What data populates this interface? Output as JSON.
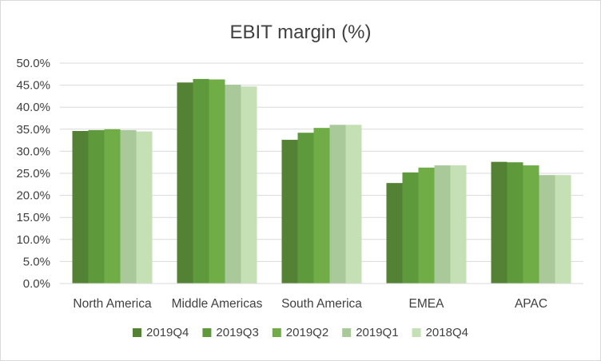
{
  "chart_data": {
    "type": "bar",
    "title": "EBIT margin (%)",
    "xlabel": "",
    "ylabel": "",
    "ylim": [
      0,
      50
    ],
    "yticks": [
      "0.0%",
      "5.0%",
      "10.0%",
      "15.0%",
      "20.0%",
      "25.0%",
      "30.0%",
      "35.0%",
      "40.0%",
      "45.0%",
      "50.0%"
    ],
    "categories": [
      "North America",
      "Middle Americas",
      "South America",
      "EMEA",
      "APAC"
    ],
    "series": [
      {
        "name": "2019Q4",
        "color": "#548235",
        "values": [
          34.6,
          45.6,
          32.6,
          22.8,
          27.6
        ]
      },
      {
        "name": "2019Q3",
        "color": "#5e9a3c",
        "values": [
          34.8,
          46.4,
          34.2,
          25.2,
          27.5
        ]
      },
      {
        "name": "2019Q2",
        "color": "#70ad47",
        "values": [
          35.0,
          46.3,
          35.3,
          26.3,
          26.8
        ]
      },
      {
        "name": "2019Q1",
        "color": "#a9c99a",
        "values": [
          34.8,
          45.1,
          36.0,
          26.8,
          24.6
        ]
      },
      {
        "name": "2018Q4",
        "color": "#c5e0b4",
        "values": [
          34.5,
          44.7,
          36.0,
          26.8,
          24.6
        ]
      }
    ],
    "grid": true,
    "legend_position": "bottom"
  }
}
